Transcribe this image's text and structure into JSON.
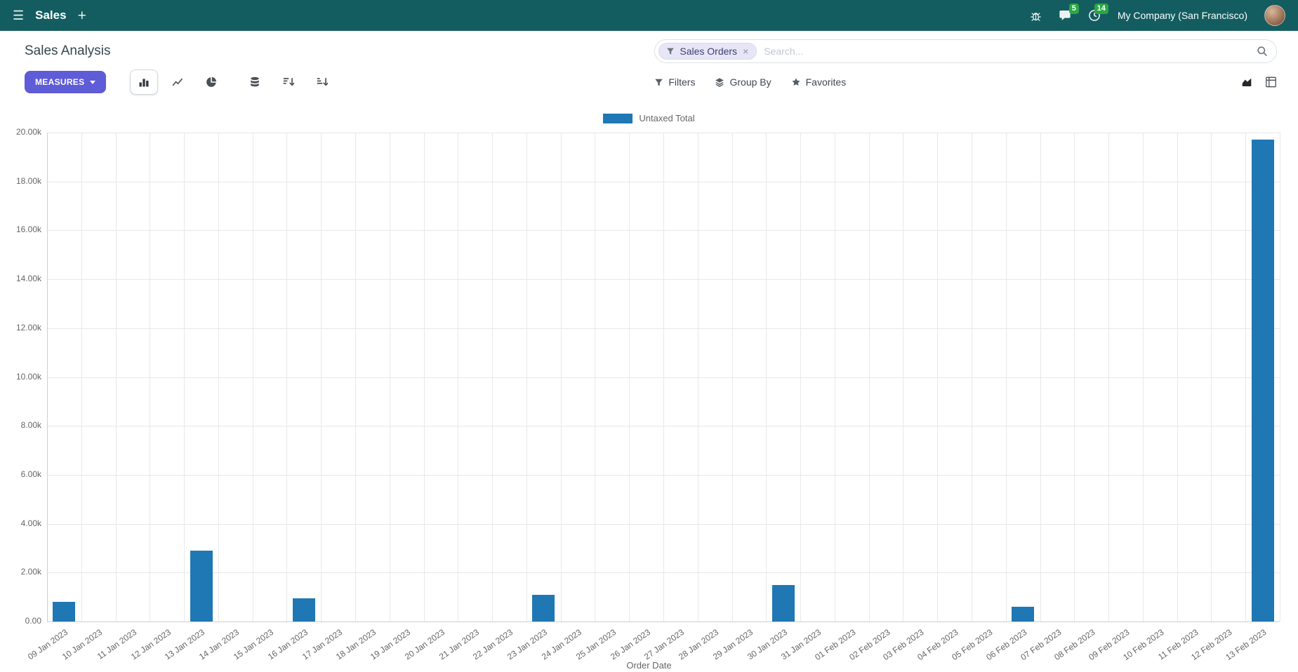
{
  "colors": {
    "navbar_bg": "#135d60",
    "accent": "#5e5cd6",
    "badge_green": "#2ca744",
    "bar": "#1f77b4"
  },
  "navbar": {
    "app_name": "Sales",
    "company": "My Company (San Francisco)",
    "chat_badge": "5",
    "activity_badge": "14"
  },
  "header": {
    "title": "Sales Analysis",
    "measures_label": "MEASURES",
    "filters_label": "Filters",
    "group_by_label": "Group By",
    "favorites_label": "Favorites",
    "search": {
      "facet": "Sales Orders",
      "facet_remove": "×",
      "placeholder": "Search..."
    }
  },
  "chart_data": {
    "type": "bar",
    "title": "",
    "xlabel": "Order Date",
    "ylabel": "",
    "ylim": [
      0,
      20000
    ],
    "y_tick_step": 2000,
    "grid": true,
    "legend_position": "top",
    "legend": [
      {
        "label": "Untaxed Total",
        "color": "#1f77b4"
      }
    ],
    "categories": [
      "09 Jan 2023",
      "10 Jan 2023",
      "11 Jan 2023",
      "12 Jan 2023",
      "13 Jan 2023",
      "14 Jan 2023",
      "15 Jan 2023",
      "16 Jan 2023",
      "17 Jan 2023",
      "18 Jan 2023",
      "19 Jan 2023",
      "20 Jan 2023",
      "21 Jan 2023",
      "22 Jan 2023",
      "23 Jan 2023",
      "24 Jan 2023",
      "25 Jan 2023",
      "26 Jan 2023",
      "27 Jan 2023",
      "28 Jan 2023",
      "29 Jan 2023",
      "30 Jan 2023",
      "31 Jan 2023",
      "01 Feb 2023",
      "02 Feb 2023",
      "03 Feb 2023",
      "04 Feb 2023",
      "05 Feb 2023",
      "06 Feb 2023",
      "07 Feb 2023",
      "08 Feb 2023",
      "09 Feb 2023",
      "10 Feb 2023",
      "11 Feb 2023",
      "12 Feb 2023",
      "13 Feb 2023"
    ],
    "values": [
      800,
      0,
      0,
      0,
      2900,
      0,
      0,
      950,
      0,
      0,
      0,
      0,
      0,
      0,
      1080,
      0,
      0,
      0,
      0,
      0,
      0,
      1500,
      0,
      0,
      0,
      0,
      0,
      0,
      610,
      0,
      0,
      0,
      0,
      0,
      0,
      19700
    ]
  }
}
